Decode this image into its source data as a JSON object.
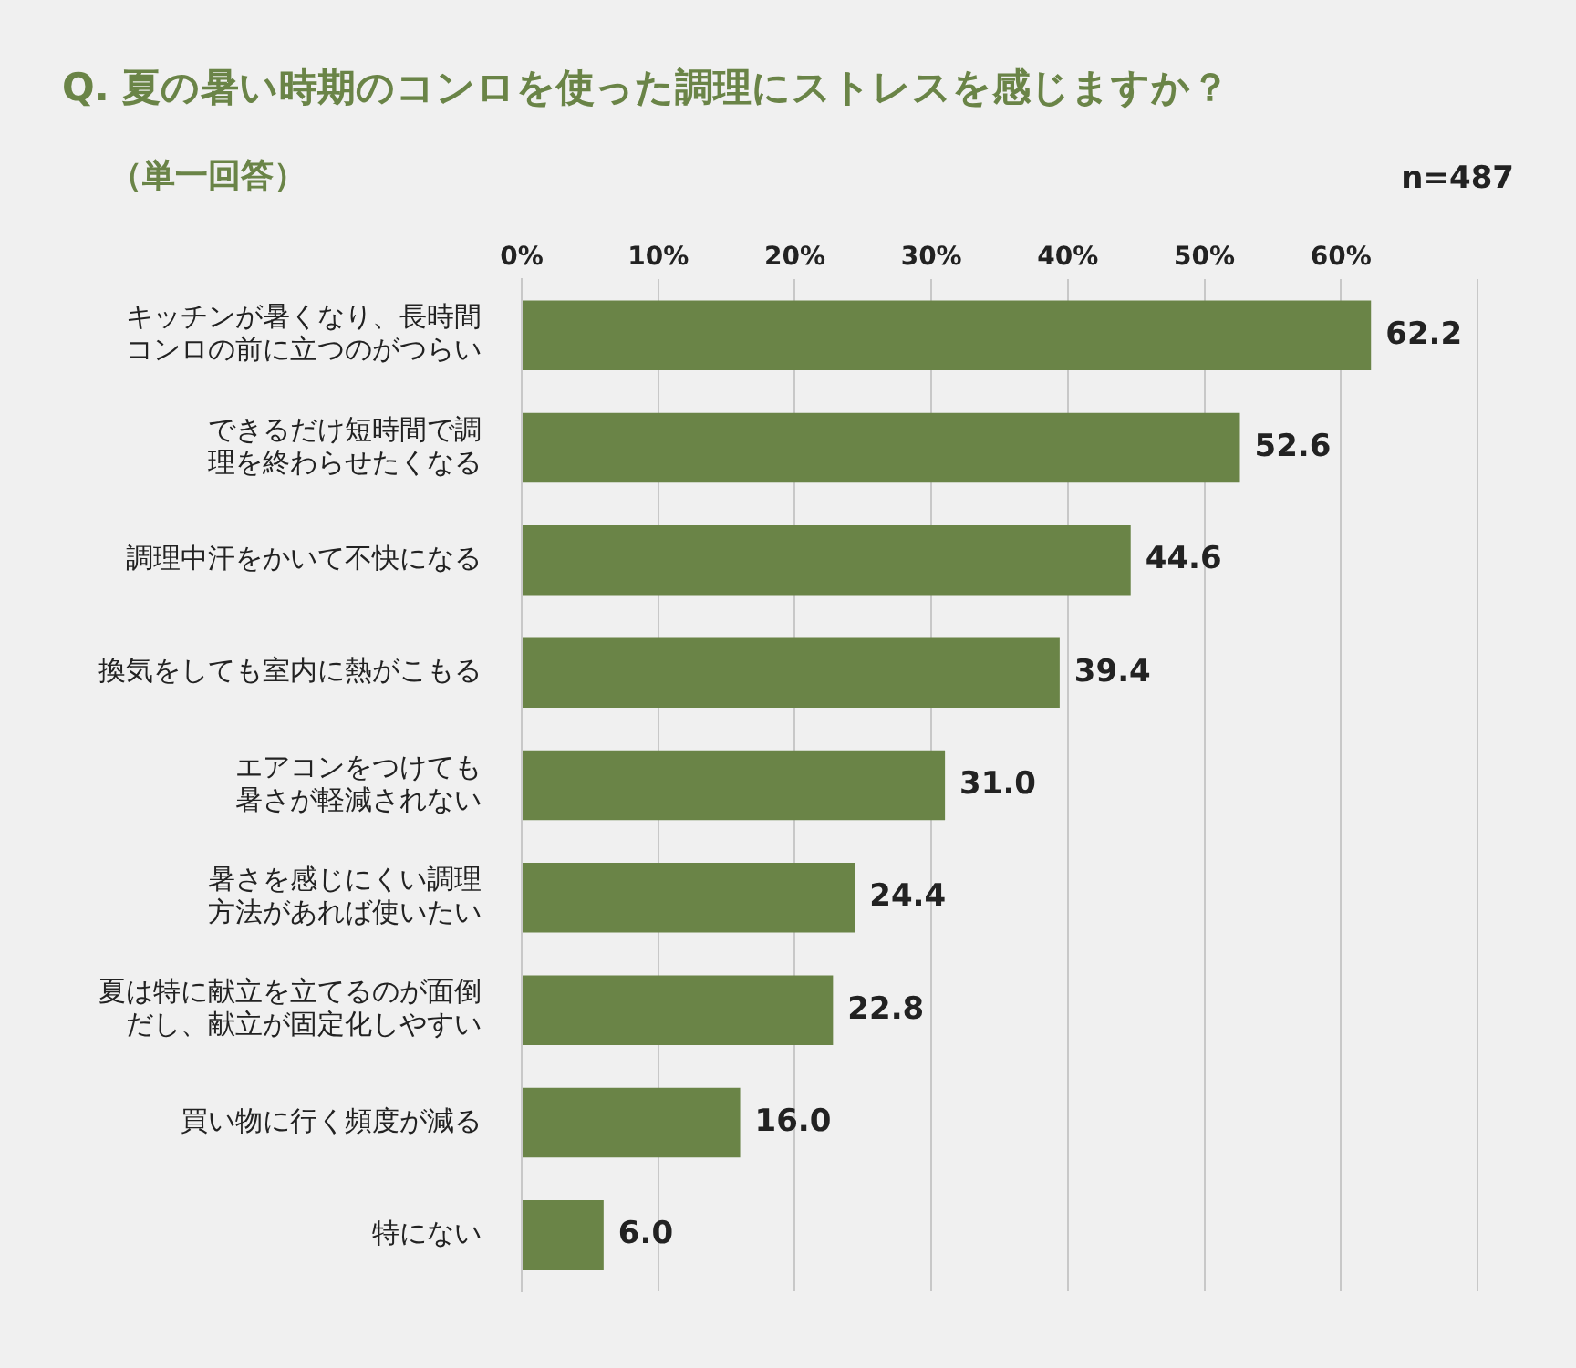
{
  "chart_data": {
    "type": "bar",
    "orientation": "horizontal",
    "title": "Q. 夏の暑い時期のコンロを使った調理にストレスを感じますか？",
    "subtitle": "（単一回答）",
    "annotations": [
      "n=487"
    ],
    "categories": [
      "キッチンが暑くなり、長時間コンロの前に立つのがつらい",
      "できるだけ短時間で調理を終わらせたくなる",
      "調理中汗をかいて不快になる",
      "換気をしても室内に熱がこもる",
      "エアコンをつけても暑さが軽減されない",
      "暑さを感じにくい調理方法があれば使いたい",
      "夏は特に献立を立てるのが面倒だし、献立が固定化しやすい",
      "買い物に行く頻度が減る",
      "特にない"
    ],
    "values": [
      62.2,
      52.6,
      44.6,
      39.4,
      31.0,
      24.4,
      22.8,
      16.0,
      6.0
    ],
    "value_labels": [
      "62.2",
      "52.6",
      "44.6",
      "39.4",
      "31.0",
      "24.4",
      "22.8",
      "16.0",
      "6.0"
    ],
    "color": "#6a8447",
    "xlim": [
      0,
      70
    ],
    "xticks": [
      {
        "value": 0,
        "label": "0%"
      },
      {
        "value": 10,
        "label": "10%"
      },
      {
        "value": 20,
        "label": "20%"
      },
      {
        "value": 30,
        "label": "30%"
      },
      {
        "value": 40,
        "label": "40%"
      },
      {
        "value": 50,
        "label": "50%"
      },
      {
        "value": 60,
        "label": "60%"
      },
      {
        "value": 70,
        "label": null
      }
    ],
    "grid": "x",
    "legend": false
  }
}
